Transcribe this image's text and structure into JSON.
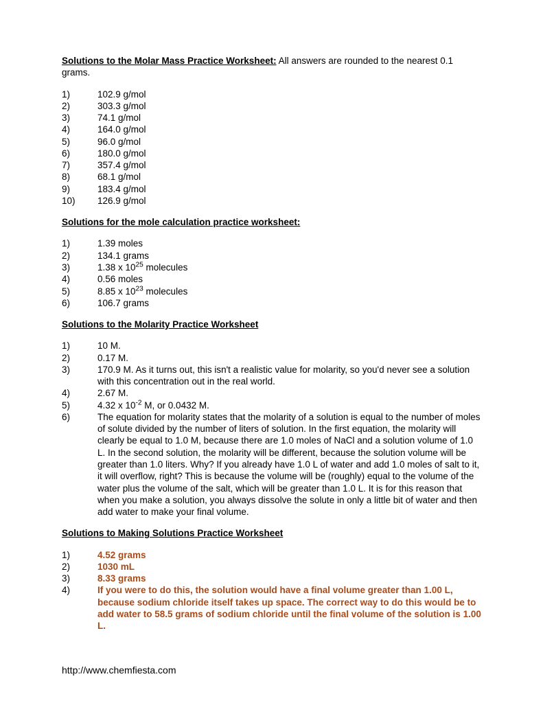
{
  "section1": {
    "title": "Solutions to the Molar Mass Practice Worksheet:",
    "subtitle": " All answers are rounded to the nearest 0.1 grams.",
    "items": [
      {
        "n": "1)",
        "v": "102.9 g/mol"
      },
      {
        "n": "2)",
        "v": "303.3 g/mol"
      },
      {
        "n": "3)",
        "v": "74.1 g/mol"
      },
      {
        "n": "4)",
        "v": "164.0 g/mol"
      },
      {
        "n": "5)",
        "v": "96.0 g/mol"
      },
      {
        "n": "6)",
        "v": "180.0 g/mol"
      },
      {
        "n": "7)",
        "v": "357.4 g/mol"
      },
      {
        "n": "8)",
        "v": "68.1 g/mol"
      },
      {
        "n": "9)",
        "v": "183.4 g/mol"
      },
      {
        "n": "10)",
        "v": "126.9 g/mol"
      }
    ]
  },
  "section2": {
    "title": "Solutions for the mole calculation practice worksheet:",
    "items": [
      {
        "n": "1)",
        "v": "1.39 moles"
      },
      {
        "n": "2)",
        "v": "134.1 grams"
      },
      {
        "n": "3)",
        "pre": "1.38 x 10",
        "sup": "25",
        "post": " molecules"
      },
      {
        "n": "4)",
        "v": "0.56 moles"
      },
      {
        "n": "5)",
        "pre": "8.85 x 10",
        "sup": "23",
        "post": " molecules"
      },
      {
        "n": "6)",
        "v": "106.7 grams"
      }
    ]
  },
  "section3": {
    "title": "Solutions to the Molarity Practice Worksheet",
    "items": [
      {
        "n": "1)",
        "v": "10 M."
      },
      {
        "n": "2)",
        "v": "0.17 M."
      },
      {
        "n": "3)",
        "v": "170.9 M.  As it turns out, this isn't a realistic value for molarity, so you'd never see a solution with this concentration out in the real world."
      },
      {
        "n": "4)",
        "v": "2.67 M."
      },
      {
        "n": "5)",
        "pre": "4.32 x 10",
        "sup": "-2",
        "post": " M, or 0.0432 M."
      },
      {
        "n": "6)",
        "v": "The equation for molarity states that the molarity of a solution is equal to the number of moles of solute divided by the number of liters of solution.  In the first equation, the molarity will clearly be equal to 1.0 M, because there are 1.0 moles of NaCl and a solution volume of 1.0 L.  In the second solution, the molarity will be different, because the solution volume will be greater than 1.0 liters.  Why?  If you already have 1.0 L of water and add 1.0 moles of salt to it, it will overflow, right?  This is because the volume will be (roughly) equal to the volume of the water plus the volume of the salt, which will be greater than 1.0 L.  It is for this reason that when you make a solution, you always dissolve the solute in only a little bit of water and then add water to make your final volume."
      }
    ]
  },
  "section4": {
    "title": "Solutions to Making Solutions Practice Worksheet",
    "items": [
      {
        "n": "1)",
        "v": "4.52 grams"
      },
      {
        "n": "2)",
        "v": "1030 mL"
      },
      {
        "n": "3)",
        "v": "8.33 grams"
      },
      {
        "n": "4)",
        "v": "If you were to do this, the solution would have a final volume greater than 1.00 L, because sodium chloride itself takes up space.  The correct way to do this would be to add water to 58.5 grams of sodium chloride until the final volume of the solution is 1.00 L."
      }
    ]
  },
  "footer": "http://www.chemfiesta.com"
}
